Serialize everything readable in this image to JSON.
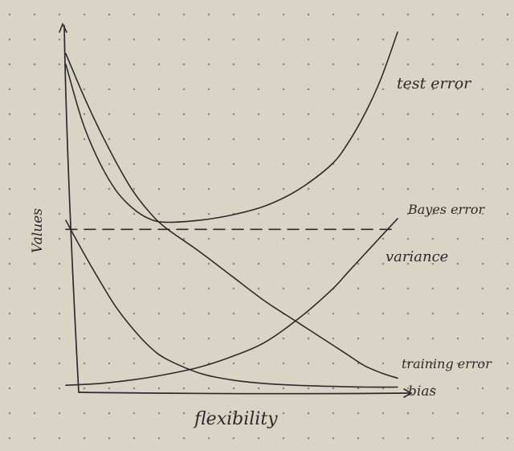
{
  "colors": {
    "paper": "#d9d4c6",
    "dot": "#8e8a80",
    "ink": "#2b2b2f"
  },
  "chart_data": {
    "type": "line",
    "title": "",
    "xlabel": "flexibility",
    "ylabel": "Values",
    "xlim": [
      0,
      10
    ],
    "ylim": [
      0,
      10
    ],
    "grid": false,
    "series": [
      {
        "name": "test error",
        "x": [
          0,
          0.5,
          1,
          1.5,
          2,
          2.5,
          3,
          4,
          5,
          6,
          7,
          8,
          8.5,
          9,
          9.5,
          10
        ],
        "y": [
          9.1,
          7.5,
          6.4,
          5.6,
          5.1,
          4.8,
          4.7,
          4.75,
          4.9,
          5.15,
          5.6,
          6.3,
          6.9,
          7.7,
          8.7,
          10
        ]
      },
      {
        "name": "Bayes error",
        "dashed": true,
        "x": [
          0,
          10
        ],
        "y": [
          4.5,
          4.5
        ]
      },
      {
        "name": "variance",
        "x": [
          0,
          1,
          2,
          3,
          4,
          5,
          6,
          7,
          8,
          8.5,
          9,
          9.5,
          10
        ],
        "y": [
          0.15,
          0.2,
          0.3,
          0.45,
          0.65,
          0.95,
          1.35,
          2.0,
          2.8,
          3.3,
          3.8,
          4.3,
          4.8
        ]
      },
      {
        "name": "training error",
        "x": [
          0,
          0.5,
          1,
          1.5,
          2,
          2.5,
          3,
          4,
          5,
          6,
          7,
          8,
          8.5,
          9,
          9.5,
          10
        ],
        "y": [
          9.4,
          8.3,
          7.3,
          6.4,
          5.6,
          5.0,
          4.55,
          3.9,
          3.2,
          2.5,
          1.9,
          1.3,
          1.0,
          0.7,
          0.5,
          0.35
        ]
      },
      {
        "name": "bias",
        "x": [
          0,
          0.5,
          1,
          1.5,
          2,
          2.5,
          3,
          4,
          5,
          6,
          7,
          8,
          9,
          10
        ],
        "y": [
          4.75,
          3.9,
          3.1,
          2.35,
          1.75,
          1.25,
          0.9,
          0.5,
          0.3,
          0.2,
          0.15,
          0.12,
          0.1,
          0.1
        ]
      }
    ]
  }
}
